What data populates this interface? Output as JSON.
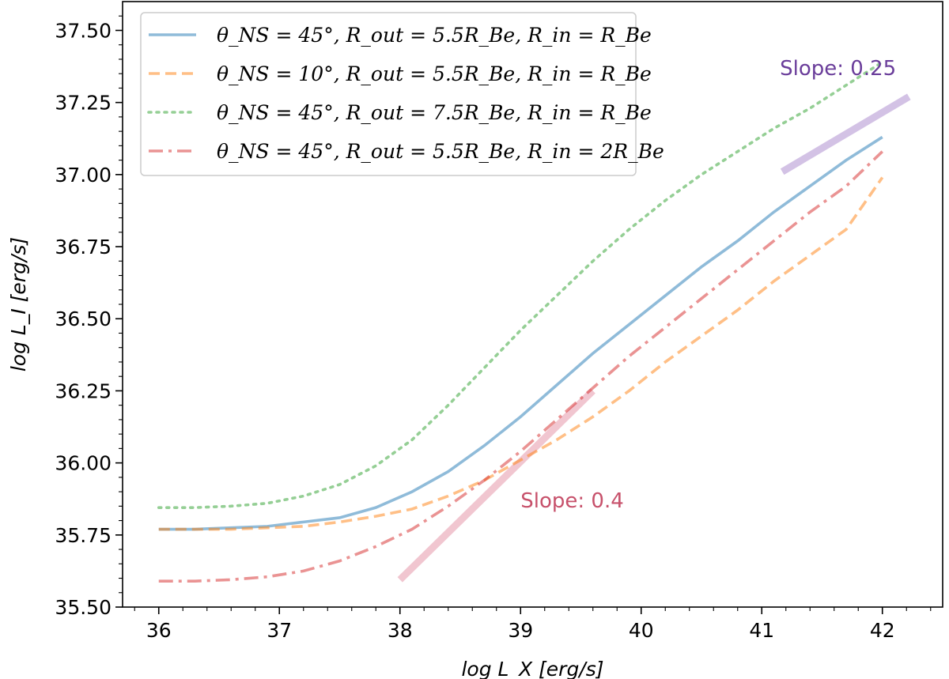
{
  "chart_data": {
    "type": "line",
    "xlabel": "log L_X [erg/s]",
    "ylabel": "log L_I [erg/s]",
    "xlim": [
      35.7,
      42.5
    ],
    "ylim": [
      35.5,
      37.6
    ],
    "xticks": [
      "36",
      "37",
      "38",
      "39",
      "40",
      "41",
      "42"
    ],
    "yticks": [
      "35.50",
      "35.75",
      "36.00",
      "36.25",
      "36.50",
      "36.75",
      "37.00",
      "37.25",
      "37.50"
    ],
    "grid": false,
    "legend_position": "upper-left",
    "series": [
      {
        "name": "θ_NS = 45°, R_out = 5.5R_Be, R_in = R_Be",
        "color": "#1f77b4",
        "style": "solid",
        "x": [
          36.0,
          36.3,
          36.6,
          36.9,
          37.2,
          37.5,
          37.8,
          38.1,
          38.4,
          38.7,
          39.0,
          39.3,
          39.6,
          39.9,
          40.2,
          40.5,
          40.8,
          41.1,
          41.4,
          41.7,
          42.0
        ],
        "y": [
          35.77,
          35.77,
          35.775,
          35.78,
          35.795,
          35.81,
          35.845,
          35.9,
          35.97,
          36.06,
          36.16,
          36.27,
          36.38,
          36.48,
          36.58,
          36.68,
          36.77,
          36.87,
          36.96,
          37.05,
          37.13
        ]
      },
      {
        "name": "θ_NS = 10°, R_out = 5.5R_Be, R_in = R_Be",
        "color": "#ff7f0e",
        "style": "dashed",
        "x": [
          36.0,
          36.3,
          36.6,
          36.9,
          37.2,
          37.5,
          37.8,
          38.1,
          38.4,
          38.7,
          39.0,
          39.3,
          39.6,
          39.9,
          40.2,
          40.5,
          40.8,
          41.1,
          41.4,
          41.7,
          42.0
        ],
        "y": [
          35.77,
          35.77,
          35.77,
          35.775,
          35.78,
          35.795,
          35.815,
          35.84,
          35.885,
          35.94,
          36.01,
          36.08,
          36.16,
          36.25,
          36.35,
          36.44,
          36.53,
          36.63,
          36.72,
          36.81,
          36.99
        ]
      },
      {
        "name": "θ_NS = 45°, R_out = 7.5R_Be, R_in = R_Be",
        "color": "#2ca02c",
        "style": "dotted",
        "x": [
          36.0,
          36.3,
          36.6,
          36.9,
          37.2,
          37.5,
          37.8,
          38.1,
          38.4,
          38.7,
          39.0,
          39.3,
          39.6,
          39.9,
          40.2,
          40.5,
          40.8,
          41.1,
          41.4,
          41.7,
          42.0
        ],
        "y": [
          35.845,
          35.845,
          35.85,
          35.86,
          35.885,
          35.925,
          35.99,
          36.08,
          36.2,
          36.33,
          36.46,
          36.58,
          36.7,
          36.81,
          36.91,
          37.0,
          37.08,
          37.16,
          37.23,
          37.31,
          37.39
        ]
      },
      {
        "name": "θ_NS = 45°, R_out = 5.5R_Be, R_in = 2R_Be",
        "color": "#d62728",
        "style": "dashdot",
        "x": [
          36.0,
          36.3,
          36.6,
          36.9,
          37.2,
          37.5,
          37.8,
          38.1,
          38.4,
          38.7,
          39.0,
          39.3,
          39.6,
          39.9,
          40.2,
          40.5,
          40.8,
          41.1,
          41.4,
          41.7,
          42.0
        ],
        "y": [
          35.59,
          35.59,
          35.595,
          35.605,
          35.625,
          35.66,
          35.71,
          35.77,
          35.85,
          35.94,
          36.04,
          36.15,
          36.26,
          36.37,
          36.47,
          36.57,
          36.67,
          36.77,
          36.87,
          36.96,
          37.08
        ]
      }
    ],
    "guides": [
      {
        "label": "Slope: 0.4",
        "color": "#e8a0b0",
        "x": [
          38.0,
          39.6
        ],
        "y": [
          35.595,
          36.25
        ]
      },
      {
        "label": "Slope: 0.25",
        "color": "#b69ad4",
        "x": [
          41.17,
          42.22
        ],
        "y": [
          37.01,
          37.27
        ]
      }
    ],
    "annotations": [
      {
        "text": "Slope: 0.4",
        "color": "#c7516b",
        "x": 39.0,
        "y": 35.845
      },
      {
        "text": "Slope: 0.25",
        "color": "#6a3d9a",
        "x": 41.15,
        "y": 37.345
      }
    ]
  }
}
